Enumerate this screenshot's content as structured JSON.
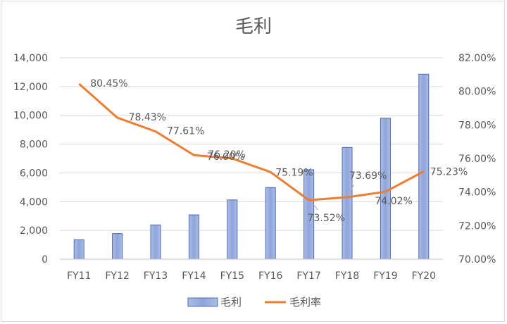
{
  "chart_data": {
    "type": "bar+line",
    "title": "毛利",
    "categories": [
      "FY11",
      "FY12",
      "FY13",
      "FY14",
      "FY15",
      "FY16",
      "FY17",
      "FY18",
      "FY19",
      "FY20"
    ],
    "series": [
      {
        "name": "毛利",
        "type": "bar",
        "axis": "left",
        "color": "#8ea4dc",
        "values": [
          1350,
          1780,
          2380,
          3080,
          4120,
          4980,
          6220,
          7770,
          9800,
          12860
        ]
      },
      {
        "name": "毛利率",
        "type": "line",
        "axis": "right",
        "color": "#ed7d31",
        "values": [
          80.45,
          78.43,
          77.61,
          76.2,
          76.0,
          75.19,
          73.52,
          73.69,
          74.02,
          75.23
        ],
        "labels": [
          "80.45%",
          "78.43%",
          "77.61%",
          "76.20%",
          "76.00%",
          "75.19%",
          "73.52%",
          "73.69%",
          "74.02%",
          "75.23%"
        ]
      }
    ],
    "y_left": {
      "min": 0,
      "max": 14000,
      "step": 2000,
      "ticks": [
        "0",
        "2,000",
        "4,000",
        "6,000",
        "8,000",
        "10,000",
        "12,000",
        "14,000"
      ]
    },
    "y_right": {
      "min": 70,
      "max": 82,
      "step": 2,
      "ticks": [
        "70.00%",
        "72.00%",
        "74.00%",
        "76.00%",
        "78.00%",
        "80.00%",
        "82.00%"
      ]
    },
    "grid": true,
    "legend": "bottom"
  }
}
